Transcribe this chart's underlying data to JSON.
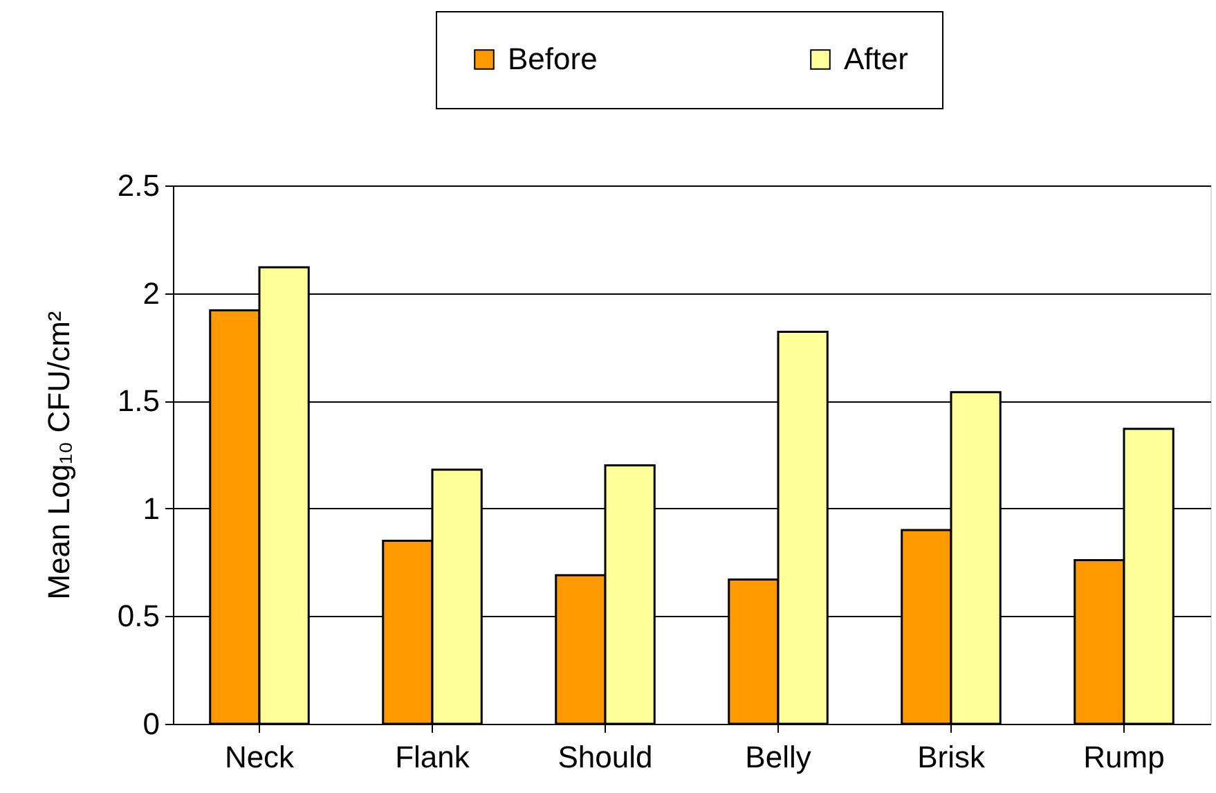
{
  "chart_data": {
    "type": "bar",
    "ylabel": "Mean Log₁₀ CFU/cm²",
    "categories": [
      "Neck",
      "Flank",
      "Should",
      "Belly",
      "Brisk",
      "Rump"
    ],
    "series": [
      {
        "name": "Before",
        "color": "#ff9900",
        "values": [
          1.92,
          0.85,
          0.69,
          0.67,
          0.9,
          0.76
        ]
      },
      {
        "name": "After",
        "color": "#ffff99",
        "values": [
          2.12,
          1.18,
          1.2,
          1.82,
          1.54,
          1.37
        ]
      }
    ],
    "ylim": [
      0,
      2.5
    ],
    "yticks": [
      0,
      0.5,
      1,
      1.5,
      2,
      2.5
    ],
    "grid": "y",
    "legend": "top"
  }
}
